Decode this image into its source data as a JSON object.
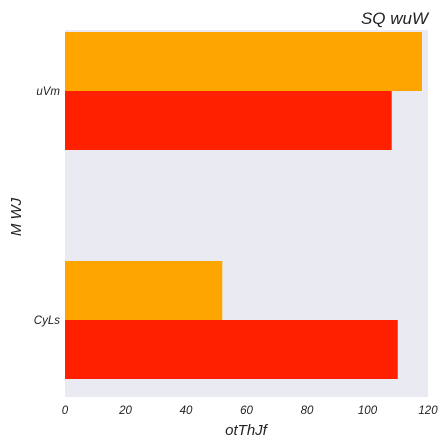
{
  "chart_data": {
    "type": "bar",
    "orientation": "horizontal",
    "title": "SQ  wuW",
    "xlabel": "otThJf",
    "ylabel": "M WJ",
    "categories": [
      "uVm",
      "CyLs"
    ],
    "series": [
      {
        "color": "#FFA500",
        "values": [
          118,
          52
        ]
      },
      {
        "color": "#FF2000",
        "values": [
          108,
          110
        ]
      }
    ],
    "xlim": [
      0,
      120
    ],
    "xticks": [
      0,
      20,
      40,
      60,
      80,
      100,
      120
    ],
    "grid": false,
    "legend": "none",
    "background": "#EAEAF2"
  }
}
